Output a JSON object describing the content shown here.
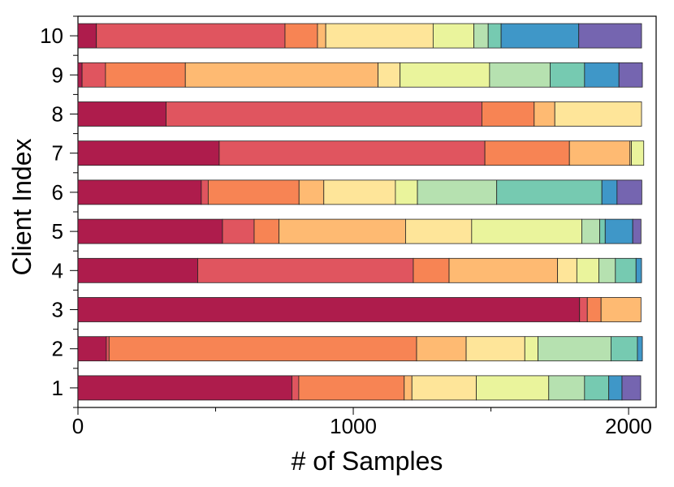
{
  "chart_data": {
    "type": "bar",
    "orientation": "horizontal",
    "stacked": true,
    "xlabel": "# of Samples",
    "ylabel": "Client Index",
    "xlim": [
      0,
      2100
    ],
    "x_ticks": [
      0,
      1000,
      2000
    ],
    "x_minor_ticks": [
      500,
      1500
    ],
    "grid": false,
    "legend": "none",
    "categories": [
      "1",
      "2",
      "3",
      "4",
      "5",
      "6",
      "7",
      "8",
      "9",
      "10"
    ],
    "segment_colors": [
      "#ae1c4c",
      "#e0555f",
      "#f78454",
      "#feba72",
      "#fee599",
      "#eaf49c",
      "#b6e1b0",
      "#76cab1",
      "#3f97c8",
      "#7565b0"
    ],
    "segments": [
      [
        777,
        25,
        383,
        28,
        234,
        263,
        130,
        88,
        48,
        68
      ],
      [
        103,
        10,
        1117,
        180,
        213,
        48,
        265,
        96,
        18,
        0
      ],
      [
        1822,
        28,
        50,
        145,
        0,
        0,
        0,
        0,
        0,
        0
      ],
      [
        435,
        783,
        130,
        394,
        70,
        80,
        60,
        75,
        20,
        0
      ],
      [
        525,
        115,
        90,
        460,
        240,
        400,
        65,
        20,
        100,
        30
      ],
      [
        448,
        25,
        330,
        90,
        260,
        80,
        288,
        382,
        55,
        90
      ],
      [
        513,
        965,
        307,
        220,
        5,
        45,
        0,
        0,
        0,
        0
      ],
      [
        320,
        1147,
        190,
        75,
        315,
        0,
        0,
        0,
        0,
        0
      ],
      [
        15,
        85,
        290,
        700,
        80,
        325,
        220,
        125,
        125,
        85
      ],
      [
        67,
        685,
        118,
        30,
        390,
        148,
        52,
        47,
        282,
        228
      ]
    ]
  }
}
